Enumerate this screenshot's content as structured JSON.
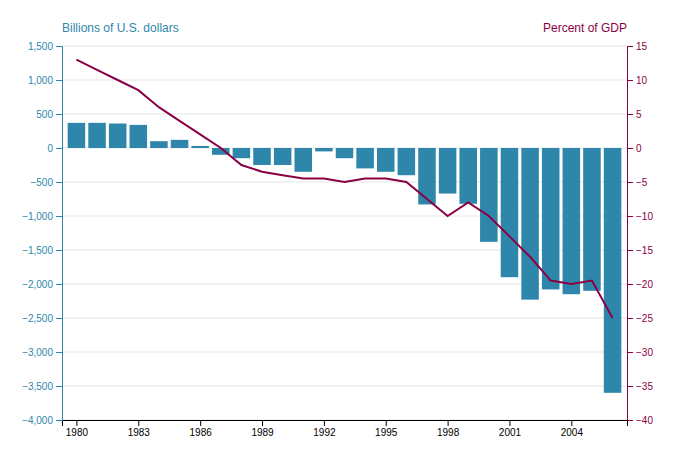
{
  "chart_data": {
    "type": "bar",
    "ylabel": "Billions of U.S. dollars",
    "y2label": "Percent of GDP",
    "x": [
      1980,
      1981,
      1982,
      1983,
      1984,
      1985,
      1986,
      1987,
      1988,
      1989,
      1990,
      1991,
      1992,
      1993,
      1994,
      1995,
      1996,
      1997,
      1998,
      1999,
      2000,
      2001,
      2002,
      2003,
      2004,
      2005,
      2006
    ],
    "series": [
      {
        "type": "bar",
        "color": "#2e86ab",
        "values": [
          370,
          370,
          360,
          340,
          100,
          120,
          30,
          -100,
          -150,
          -250,
          -250,
          -350,
          -50,
          -150,
          -300,
          -350,
          -400,
          -830,
          -670,
          -820,
          -1380,
          -1900,
          -2230,
          -2080,
          -2150,
          -2100,
          -3600
        ]
      },
      {
        "type": "line",
        "axis": "y2",
        "color": "#8b0045",
        "values": [
          13.0,
          11.5,
          10.0,
          8.5,
          6.0,
          4.0,
          2.0,
          0.0,
          -2.5,
          -3.5,
          -4.0,
          -4.5,
          -4.5,
          -5.0,
          -4.5,
          -4.5,
          -5.0,
          -7.5,
          -10.0,
          -8.0,
          -10.0,
          -13.0,
          -16.0,
          -19.5,
          -20.0,
          -19.5,
          -25.0
        ]
      }
    ],
    "xlim": [
      1979.3,
      2006.7
    ],
    "xticks": [
      1980,
      1983,
      1986,
      1989,
      1992,
      1995,
      1998,
      2001,
      2004
    ],
    "ylim": [
      -4000,
      1500
    ],
    "yticks": [
      {
        "value": -4000,
        "label": "−4,000"
      },
      {
        "value": -3500,
        "label": "−3,500"
      },
      {
        "value": -3000,
        "label": "−3,000"
      },
      {
        "value": -2500,
        "label": "−2,500"
      },
      {
        "value": -2000,
        "label": "−2,000"
      },
      {
        "value": -1500,
        "label": "−1,500"
      },
      {
        "value": -1000,
        "label": "−1,000"
      },
      {
        "value": -500,
        "label": "−500"
      },
      0,
      500,
      {
        "value": 1000,
        "label": "1,000"
      },
      {
        "value": 1500,
        "label": "1,500"
      }
    ],
    "y2lim": [
      -40,
      15
    ],
    "y2ticks": [
      {
        "value": -40,
        "label": "−40"
      },
      {
        "value": -35,
        "label": "−35"
      },
      {
        "value": -30,
        "label": "−30"
      },
      {
        "value": -25,
        "label": "−25"
      },
      {
        "value": -20,
        "label": "−20"
      },
      {
        "value": -15,
        "label": "−15"
      },
      {
        "value": -10,
        "label": "−10"
      },
      {
        "value": -5,
        "label": "−5"
      },
      0,
      5,
      10,
      15
    ],
    "grid": true
  }
}
